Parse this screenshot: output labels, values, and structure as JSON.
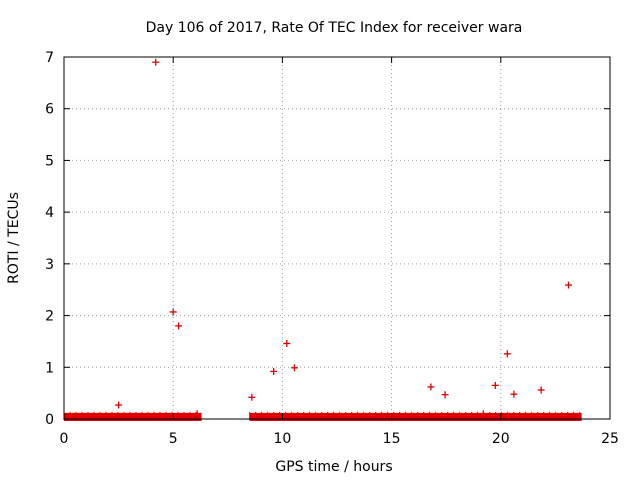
{
  "chart_data": {
    "type": "scatter",
    "title": "Day 106 of 2017, Rate Of TEC Index for receiver wara",
    "xlabel": "GPS time / hours",
    "ylabel": "ROTI / TECUs",
    "xlim": [
      0,
      25
    ],
    "ylim": [
      0,
      7
    ],
    "x_ticks": [
      0,
      5,
      10,
      15,
      20,
      25
    ],
    "y_ticks": [
      0,
      1,
      2,
      3,
      4,
      5,
      6,
      7
    ],
    "x_tick_labels": [
      "0",
      "5",
      "10",
      "15",
      "20",
      "25"
    ],
    "y_tick_labels": [
      "0",
      "1",
      "2",
      "3",
      "4",
      "5",
      "6",
      "7"
    ],
    "grid": true,
    "marker": "plus",
    "color": "#e00000",
    "baseline_bands": [
      {
        "x_start": 0.0,
        "x_end": 6.3,
        "y_min": 0.0,
        "y_max": 0.08
      },
      {
        "x_start": 8.5,
        "x_end": 23.7,
        "y_min": 0.0,
        "y_max": 0.08
      }
    ],
    "points": [
      {
        "x": 2.5,
        "y": 0.27
      },
      {
        "x": 4.2,
        "y": 6.9
      },
      {
        "x": 5.0,
        "y": 2.07
      },
      {
        "x": 5.25,
        "y": 1.8
      },
      {
        "x": 6.1,
        "y": 0.1
      },
      {
        "x": 8.6,
        "y": 0.42
      },
      {
        "x": 9.6,
        "y": 0.92
      },
      {
        "x": 10.2,
        "y": 1.46
      },
      {
        "x": 10.55,
        "y": 0.99
      },
      {
        "x": 16.8,
        "y": 0.62
      },
      {
        "x": 17.45,
        "y": 0.47
      },
      {
        "x": 19.2,
        "y": 0.1
      },
      {
        "x": 19.75,
        "y": 0.65
      },
      {
        "x": 20.3,
        "y": 1.26
      },
      {
        "x": 20.6,
        "y": 0.48
      },
      {
        "x": 21.85,
        "y": 0.56
      },
      {
        "x": 23.1,
        "y": 2.59
      }
    ]
  }
}
